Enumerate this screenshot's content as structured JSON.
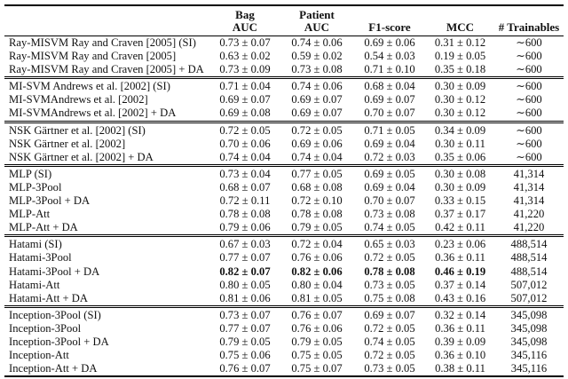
{
  "table": {
    "headers": {
      "method": "",
      "bag": {
        "line1": "Bag",
        "line2": "AUC"
      },
      "patient": {
        "line1": "Patient",
        "line2": "AUC"
      },
      "f1": "F1-score",
      "mcc": "MCC",
      "trainables": "# Trainables"
    },
    "groups": [
      {
        "rows": [
          {
            "method": "Ray-MISVM Ray and Craven [2005] (SI)",
            "values": [
              "0.73 ± 0.07",
              "0.74 ± 0.06",
              "0.69 ± 0.06",
              "0.31 ± 0.12",
              "∼600"
            ]
          },
          {
            "method": "Ray-MISVM Ray and Craven [2005]",
            "values": [
              "0.63 ± 0.02",
              "0.59 ± 0.02",
              "0.54 ± 0.03",
              "0.19 ± 0.05",
              "∼600"
            ]
          },
          {
            "method": "Ray-MISVM Ray and Craven [2005] + DA",
            "values": [
              "0.73 ± 0.09",
              "0.73 ± 0.08",
              "0.71 ± 0.10",
              "0.35 ± 0.18",
              "∼600"
            ]
          }
        ]
      },
      {
        "rows": [
          {
            "method": "MI-SVM Andrews et al. [2002] (SI)",
            "values": [
              "0.71 ± 0.04",
              "0.74 ± 0.06",
              "0.68 ± 0.04",
              "0.30 ± 0.09",
              "∼600"
            ]
          },
          {
            "method": "MI-SVMAndrews et al. [2002]",
            "values": [
              "0.69 ± 0.07",
              "0.69 ± 0.07",
              "0.69 ± 0.07",
              "0.30 ± 0.12",
              "∼600"
            ]
          },
          {
            "method": "MI-SVMAndrews et al. [2002] + DA",
            "values": [
              "0.69 ± 0.08",
              "0.69 ± 0.07",
              "0.70 ± 0.07",
              "0.30 ± 0.12",
              "∼600"
            ]
          }
        ]
      },
      {
        "rows": [
          {
            "method": "NSK Gärtner et al. [2002] (SI)",
            "values": [
              "0.72 ± 0.05",
              "0.72 ± 0.05",
              "0.71 ± 0.05",
              "0.34 ± 0.09",
              "∼600"
            ]
          },
          {
            "method": "NSK Gärtner et al. [2002]",
            "values": [
              "0.70 ± 0.06",
              "0.69 ± 0.06",
              "0.69 ± 0.04",
              "0.30 ± 0.11",
              "∼600"
            ]
          },
          {
            "method": "NSK Gärtner et al. [2002] + DA",
            "values": [
              "0.74 ± 0.04",
              "0.74 ± 0.04",
              "0.72 ± 0.03",
              "0.35 ± 0.06",
              "∼600"
            ]
          }
        ]
      },
      {
        "rows": [
          {
            "method": "MLP (SI)",
            "values": [
              "0.73 ± 0.04",
              "0.77 ± 0.05",
              "0.69 ± 0.05",
              "0.30 ± 0.08",
              "41,314"
            ]
          },
          {
            "method": "MLP-3Pool",
            "values": [
              "0.68 ± 0.07",
              "0.68 ± 0.08",
              "0.69 ± 0.04",
              "0.30 ± 0.09",
              "41,314"
            ]
          },
          {
            "method": "MLP-3Pool + DA",
            "values": [
              "0.72 ± 0.11",
              "0.72 ± 0.10",
              "0.70 ± 0.07",
              "0.33 ± 0.15",
              "41,314"
            ]
          },
          {
            "method": "MLP-Att",
            "values": [
              "0.78 ± 0.08",
              "0.78 ± 0.08",
              "0.73 ± 0.08",
              "0.37 ± 0.17",
              "41,220"
            ]
          },
          {
            "method": "MLP-Att + DA",
            "values": [
              "0.79 ± 0.06",
              "0.79 ± 0.05",
              "0.74 ± 0.05",
              "0.42 ± 0.11",
              "41,220"
            ]
          }
        ]
      },
      {
        "rows": [
          {
            "method": "Hatami (SI)",
            "values": [
              "0.67 ± 0.03",
              "0.72 ± 0.04",
              "0.65 ± 0.03",
              "0.23 ± 0.06",
              "488,514"
            ]
          },
          {
            "method": "Hatami-3Pool",
            "values": [
              "0.77 ± 0.07",
              "0.76 ± 0.06",
              "0.72 ± 0.05",
              "0.36 ± 0.11",
              "488,514"
            ]
          },
          {
            "method": "Hatami-3Pool + DA",
            "values": [
              "0.82 ± 0.07",
              "0.82 ± 0.06",
              "0.78 ± 0.08",
              "0.46 ± 0.19",
              "488,514"
            ],
            "bold_value_cols": [
              0,
              1,
              2,
              3
            ]
          },
          {
            "method": "Hatami-Att",
            "values": [
              "0.80 ± 0.05",
              "0.80 ± 0.04",
              "0.73 ± 0.05",
              "0.37 ± 0.14",
              "507,012"
            ]
          },
          {
            "method": "Hatami-Att + DA",
            "values": [
              "0.81 ± 0.06",
              "0.81 ± 0.05",
              "0.75 ± 0.08",
              "0.43 ± 0.16",
              "507,012"
            ]
          }
        ]
      },
      {
        "rows": [
          {
            "method": "Inception-3Pool (SI)",
            "values": [
              "0.73 ± 0.07",
              "0.76 ± 0.07",
              "0.69 ± 0.07",
              "0.32 ± 0.14",
              "345,098"
            ]
          },
          {
            "method": "Inception-3Pool",
            "values": [
              "0.77 ± 0.07",
              "0.76 ± 0.06",
              "0.72 ± 0.05",
              "0.36 ± 0.11",
              "345,098"
            ]
          },
          {
            "method": "Inception-3Pool + DA",
            "values": [
              "0.79 ± 0.05",
              "0.79 ± 0.05",
              "0.74 ± 0.05",
              "0.39 ± 0.09",
              "345,098"
            ]
          },
          {
            "method": "Inception-Att",
            "values": [
              "0.75 ± 0.06",
              "0.75 ± 0.05",
              "0.72 ± 0.05",
              "0.36 ± 0.10",
              "345,116"
            ]
          },
          {
            "method": "Inception-Att + DA",
            "values": [
              "0.76 ± 0.07",
              "0.75 ± 0.07",
              "0.73 ± 0.05",
              "0.38 ± 0.11",
              "345,116"
            ]
          }
        ]
      }
    ],
    "text_color": "#111111",
    "rule_color": "#000000"
  }
}
